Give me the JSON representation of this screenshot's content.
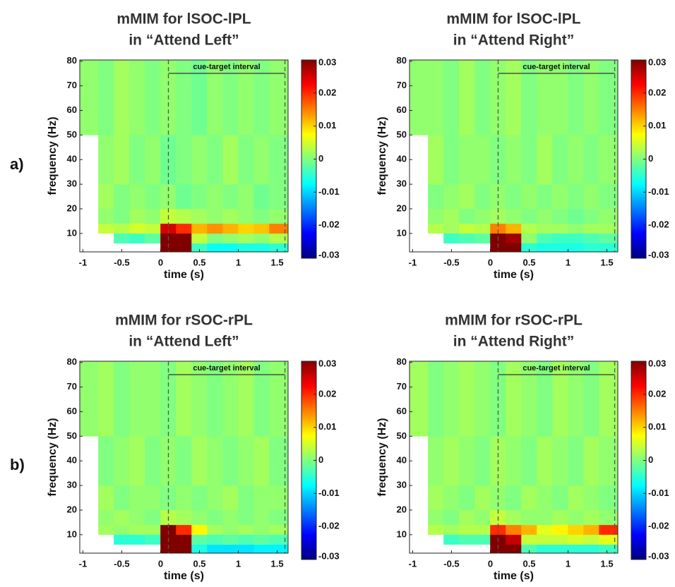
{
  "panel_labels": [
    "a)",
    "b)"
  ],
  "chart_data": [
    {
      "type": "heatmap",
      "title": [
        "mMIM for lSOC-lPL",
        "in “Attend Left”"
      ],
      "xlabel": "time (s)",
      "ylabel": "frequency (Hz)",
      "annotation": "cue-target interval",
      "cue_interval": [
        0.1,
        1.6
      ],
      "colormap": "jet",
      "xlim": [
        -1.04,
        1.64
      ],
      "ylim": [
        2.5,
        80.5
      ],
      "xticks": [
        -1,
        -0.5,
        0,
        0.5,
        1,
        1.5
      ],
      "yticks": [
        10,
        20,
        30,
        40,
        50,
        60,
        70,
        80
      ],
      "zlim": [
        -0.03,
        0.03
      ],
      "zticks": [
        0.03,
        0.02,
        0.01,
        0,
        -0.01,
        -0.02,
        -0.03
      ],
      "x_edges": [
        -1.04,
        -0.8,
        -0.6,
        -0.4,
        -0.2,
        0,
        0.2,
        0.4,
        0.6,
        0.8,
        1.0,
        1.2,
        1.4,
        1.64
      ],
      "y_edges": [
        2.5,
        6,
        10,
        14,
        20,
        30,
        50,
        80.5
      ],
      "values": [
        [
          null,
          null,
          null,
          null,
          null,
          0.03,
          0.03,
          -0.004,
          -0.007,
          -0.007,
          -0.006,
          -0.006,
          -0.005
        ],
        [
          null,
          null,
          -0.003,
          -0.004,
          -0.002,
          0.03,
          0.03,
          0.004,
          0,
          0.001,
          0.002,
          0.001,
          0.003
        ],
        [
          null,
          0.004,
          0.003,
          0.005,
          0.004,
          0.025,
          0.02,
          0.012,
          0.014,
          0.012,
          0.01,
          0.011,
          0.015
        ],
        [
          null,
          0.001,
          0,
          0.002,
          0.001,
          0.004,
          0.003,
          0.002,
          0.001,
          0.002,
          0.001,
          0,
          0.001
        ],
        [
          null,
          0.002,
          0,
          0.001,
          0,
          0.001,
          -0.001,
          0,
          0.001,
          0,
          0.001,
          -0.001,
          0
        ],
        [
          null,
          0.001,
          0.002,
          0,
          0.001,
          -0.001,
          0,
          0.001,
          0,
          0.002,
          0,
          0.001,
          0
        ],
        [
          0.001,
          0,
          0.002,
          0.001,
          0,
          0.001,
          0,
          -0.001,
          0.001,
          0,
          0.001,
          0,
          0.001
        ]
      ]
    },
    {
      "type": "heatmap",
      "title": [
        "mMIM for lSOC-lPL",
        "in “Attend Right”"
      ],
      "xlabel": "time (s)",
      "ylabel": "frequency (Hz)",
      "annotation": "cue-target interval",
      "cue_interval": [
        0.1,
        1.6
      ],
      "colormap": "jet",
      "xlim": [
        -1.04,
        1.64
      ],
      "ylim": [
        2.5,
        80.5
      ],
      "xticks": [
        -1,
        -0.5,
        0,
        0.5,
        1,
        1.5
      ],
      "yticks": [
        10,
        20,
        30,
        40,
        50,
        60,
        70,
        80
      ],
      "zlim": [
        -0.03,
        0.03
      ],
      "zticks": [
        0.03,
        0.02,
        0.01,
        0,
        -0.01,
        -0.02,
        -0.03
      ],
      "x_edges": [
        -1.04,
        -0.8,
        -0.6,
        -0.4,
        -0.2,
        0,
        0.2,
        0.4,
        0.6,
        0.8,
        1.0,
        1.2,
        1.4,
        1.64
      ],
      "y_edges": [
        2.5,
        6,
        10,
        14,
        20,
        30,
        50,
        80.5
      ],
      "values": [
        [
          null,
          null,
          null,
          null,
          null,
          0.03,
          0.03,
          -0.005,
          -0.006,
          -0.006,
          -0.006,
          -0.005,
          -0.005
        ],
        [
          null,
          null,
          -0.004,
          -0.003,
          -0.002,
          0.03,
          0.028,
          0.001,
          -0.003,
          -0.004,
          -0.004,
          -0.003,
          -0.002
        ],
        [
          null,
          0.003,
          0.002,
          0.004,
          0.003,
          0.015,
          0.012,
          0.003,
          0.002,
          0.002,
          0.001,
          0.002,
          0.002
        ],
        [
          null,
          0.001,
          0.002,
          0,
          0.001,
          0.002,
          0.001,
          0,
          0.001,
          0,
          -0.001,
          0,
          0.001
        ],
        [
          null,
          0,
          0.001,
          0.002,
          0,
          0.001,
          0,
          0.001,
          0,
          0.001,
          0,
          0.001,
          0
        ],
        [
          null,
          0.002,
          0,
          0.001,
          0.001,
          0,
          0.001,
          0,
          0.002,
          0,
          0.001,
          0,
          0.001
        ],
        [
          0.001,
          0.001,
          0,
          0.002,
          0,
          0.001,
          0.002,
          0,
          0.001,
          0.001,
          0,
          0.001,
          0
        ]
      ]
    },
    {
      "type": "heatmap",
      "title": [
        "mMIM for rSOC-rPL",
        "in “Attend Left”"
      ],
      "xlabel": "time (s)",
      "ylabel": "frequency (Hz)",
      "annotation": "cue-target interval",
      "cue_interval": [
        0.1,
        1.6
      ],
      "colormap": "jet",
      "xlim": [
        -1.04,
        1.64
      ],
      "ylim": [
        2.5,
        80.5
      ],
      "xticks": [
        -1,
        -0.5,
        0,
        0.5,
        1,
        1.5
      ],
      "yticks": [
        10,
        20,
        30,
        40,
        50,
        60,
        70,
        80
      ],
      "zlim": [
        -0.03,
        0.03
      ],
      "zticks": [
        0.03,
        0.02,
        0.01,
        0,
        -0.01,
        -0.02,
        -0.03
      ],
      "x_edges": [
        -1.04,
        -0.8,
        -0.6,
        -0.4,
        -0.2,
        0,
        0.2,
        0.4,
        0.6,
        0.8,
        1.0,
        1.2,
        1.4,
        1.64
      ],
      "y_edges": [
        2.5,
        6,
        10,
        14,
        20,
        30,
        50,
        80.5
      ],
      "values": [
        [
          null,
          null,
          null,
          null,
          null,
          0.03,
          0.03,
          -0.006,
          -0.009,
          -0.009,
          -0.009,
          -0.008,
          -0.008
        ],
        [
          null,
          null,
          -0.005,
          -0.005,
          -0.004,
          0.03,
          0.03,
          -0.002,
          -0.003,
          -0.002,
          -0.003,
          -0.002,
          -0.003
        ],
        [
          null,
          0.002,
          0.001,
          0.002,
          0.002,
          0.03,
          0.02,
          0.008,
          0.002,
          0.001,
          0.002,
          0.001,
          0.002
        ],
        [
          null,
          0.001,
          0.002,
          0.001,
          0,
          0.003,
          0.002,
          0.001,
          0,
          0.001,
          0,
          0.001,
          0
        ],
        [
          null,
          0.002,
          0,
          0.001,
          0.001,
          0,
          0.001,
          0,
          0.001,
          0.002,
          0,
          0.001,
          0.001
        ],
        [
          null,
          0,
          0.001,
          0.002,
          0,
          0.001,
          0,
          0.002,
          0.001,
          0,
          0.001,
          0.002,
          0
        ],
        [
          0.001,
          0.002,
          0,
          0.001,
          0.001,
          0,
          0.002,
          0.001,
          0,
          0.001,
          0.002,
          0,
          0.001
        ]
      ]
    },
    {
      "type": "heatmap",
      "title": [
        "mMIM for rSOC-rPL",
        "in “Attend Right”"
      ],
      "xlabel": "time (s)",
      "ylabel": "frequency (Hz)",
      "annotation": "cue-target interval",
      "cue_interval": [
        0.1,
        1.6
      ],
      "colormap": "jet",
      "xlim": [
        -1.04,
        1.64
      ],
      "ylim": [
        2.5,
        80.5
      ],
      "xticks": [
        -1,
        -0.5,
        0,
        0.5,
        1,
        1.5
      ],
      "yticks": [
        10,
        20,
        30,
        40,
        50,
        60,
        70,
        80
      ],
      "zlim": [
        -0.03,
        0.03
      ],
      "zticks": [
        0.03,
        0.02,
        0.01,
        0,
        -0.01,
        -0.02,
        -0.03
      ],
      "x_edges": [
        -1.04,
        -0.8,
        -0.6,
        -0.4,
        -0.2,
        0,
        0.2,
        0.4,
        0.6,
        0.8,
        1.0,
        1.2,
        1.4,
        1.64
      ],
      "y_edges": [
        2.5,
        6,
        10,
        14,
        20,
        30,
        50,
        80.5
      ],
      "values": [
        [
          null,
          null,
          null,
          null,
          null,
          0.03,
          0.03,
          -0.003,
          -0.005,
          -0.005,
          -0.005,
          -0.005,
          -0.004
        ],
        [
          null,
          null,
          -0.004,
          -0.003,
          -0.003,
          0.03,
          0.026,
          0.004,
          0.004,
          0.004,
          0.005,
          0.004,
          0.006
        ],
        [
          null,
          0.003,
          0.002,
          0.003,
          0.003,
          0.02,
          0.015,
          0.012,
          0.006,
          0.008,
          0.01,
          0.012,
          0.02
        ],
        [
          null,
          0.001,
          0,
          0.002,
          0.001,
          0.004,
          0.002,
          0.001,
          0.001,
          0.002,
          0.001,
          0.002,
          0.001
        ],
        [
          null,
          0.002,
          0.001,
          0,
          0.002,
          0.001,
          0,
          0.002,
          0.001,
          0,
          0.002,
          0.001,
          0
        ],
        [
          null,
          0.001,
          0.002,
          0.001,
          0,
          0.002,
          0.001,
          0,
          0.002,
          0.001,
          0,
          0.002,
          0.001
        ],
        [
          0.002,
          0,
          0.001,
          0.002,
          0.001,
          0,
          0.002,
          0.001,
          0,
          0.002,
          0.001,
          0,
          0.002
        ]
      ]
    }
  ]
}
